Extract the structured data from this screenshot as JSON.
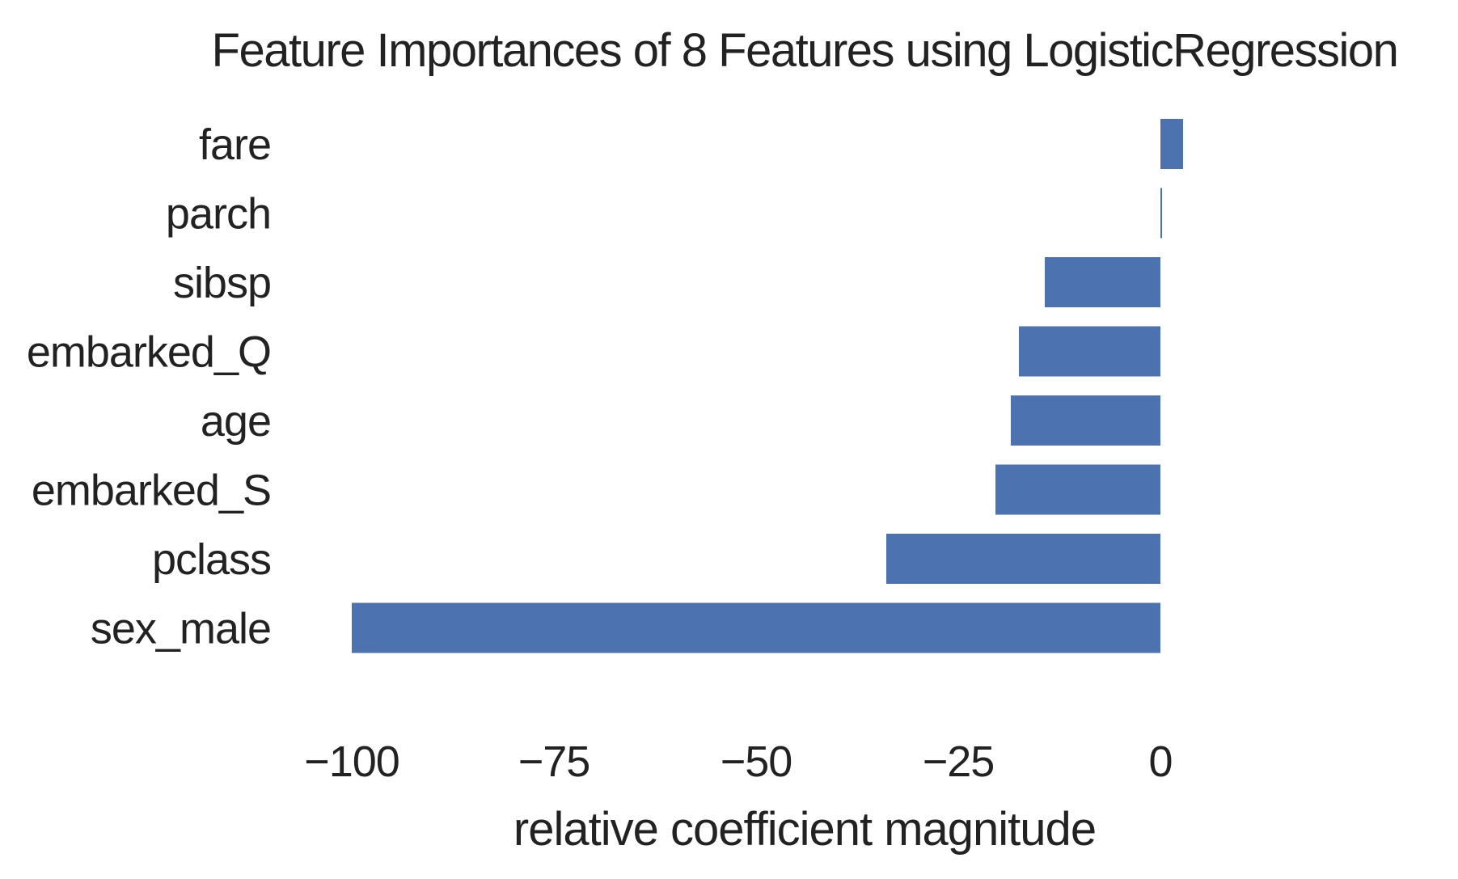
{
  "chart_data": {
    "type": "bar",
    "orientation": "horizontal",
    "title": "Feature Importances of 8 Features using LogisticRegression",
    "xlabel": "relative coefficient magnitude",
    "ylabel": "",
    "categories": [
      "fare",
      "parch",
      "sibsp",
      "embarked_Q",
      "age",
      "embarked_S",
      "pclass",
      "sex_male"
    ],
    "values": [
      2.8,
      0.2,
      -14.3,
      -17.5,
      -18.5,
      -20.4,
      -33.9,
      -100.0
    ],
    "xlim": [
      -110,
      22
    ],
    "xticks": [
      -100,
      -75,
      -50,
      -25,
      0
    ],
    "xtick_labels": [
      "−100",
      "−75",
      "−50",
      "−25",
      "0"
    ],
    "grid": false,
    "bar_color": "#4c72b0"
  }
}
